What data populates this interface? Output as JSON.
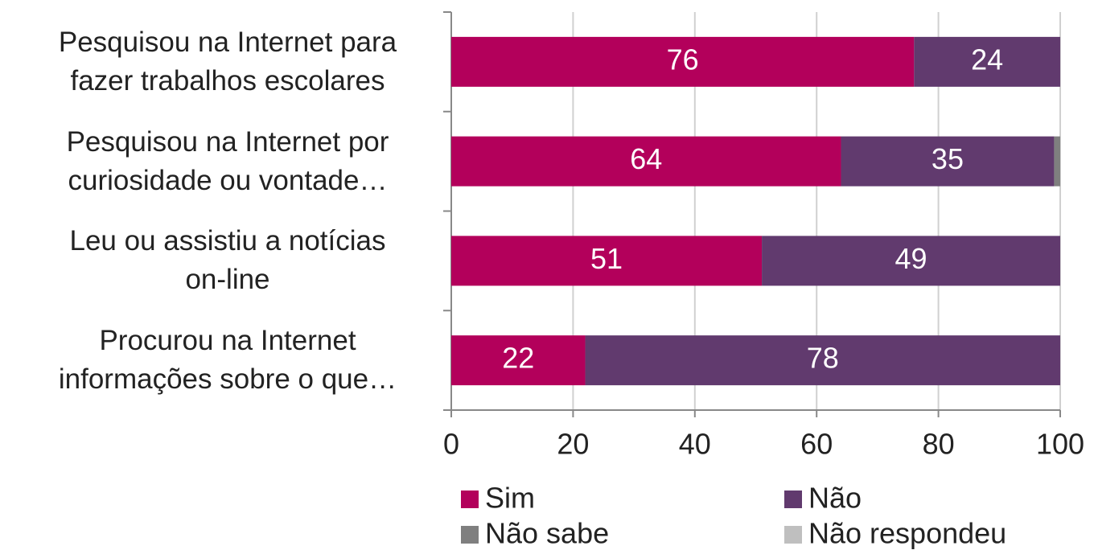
{
  "chart_data": {
    "type": "stacked-barh",
    "categories": [
      "Pesquisou na Internet para\nfazer trabalhos escolares",
      "Pesquisou na Internet por\ncuriosidade ou vontade…",
      "Leu ou assistiu a notícias\non-line",
      "Procurou na Internet\ninformações sobre o que…"
    ],
    "series": [
      {
        "name": "Sim",
        "color": "#b3005b",
        "values": [
          76,
          64,
          51,
          22
        ]
      },
      {
        "name": "Não",
        "color": "#613a6e",
        "values": [
          24,
          35,
          49,
          78
        ]
      },
      {
        "name": "Não sabe",
        "color": "#7f7f7f",
        "values": [
          0,
          1,
          0,
          0
        ]
      },
      {
        "name": "Não respondeu",
        "color": "#bfbfbf",
        "values": [
          0,
          0,
          0,
          0
        ]
      }
    ],
    "xlim": [
      0,
      100
    ],
    "xticks": [
      0,
      20,
      40,
      60,
      80,
      100
    ],
    "grid": true
  }
}
